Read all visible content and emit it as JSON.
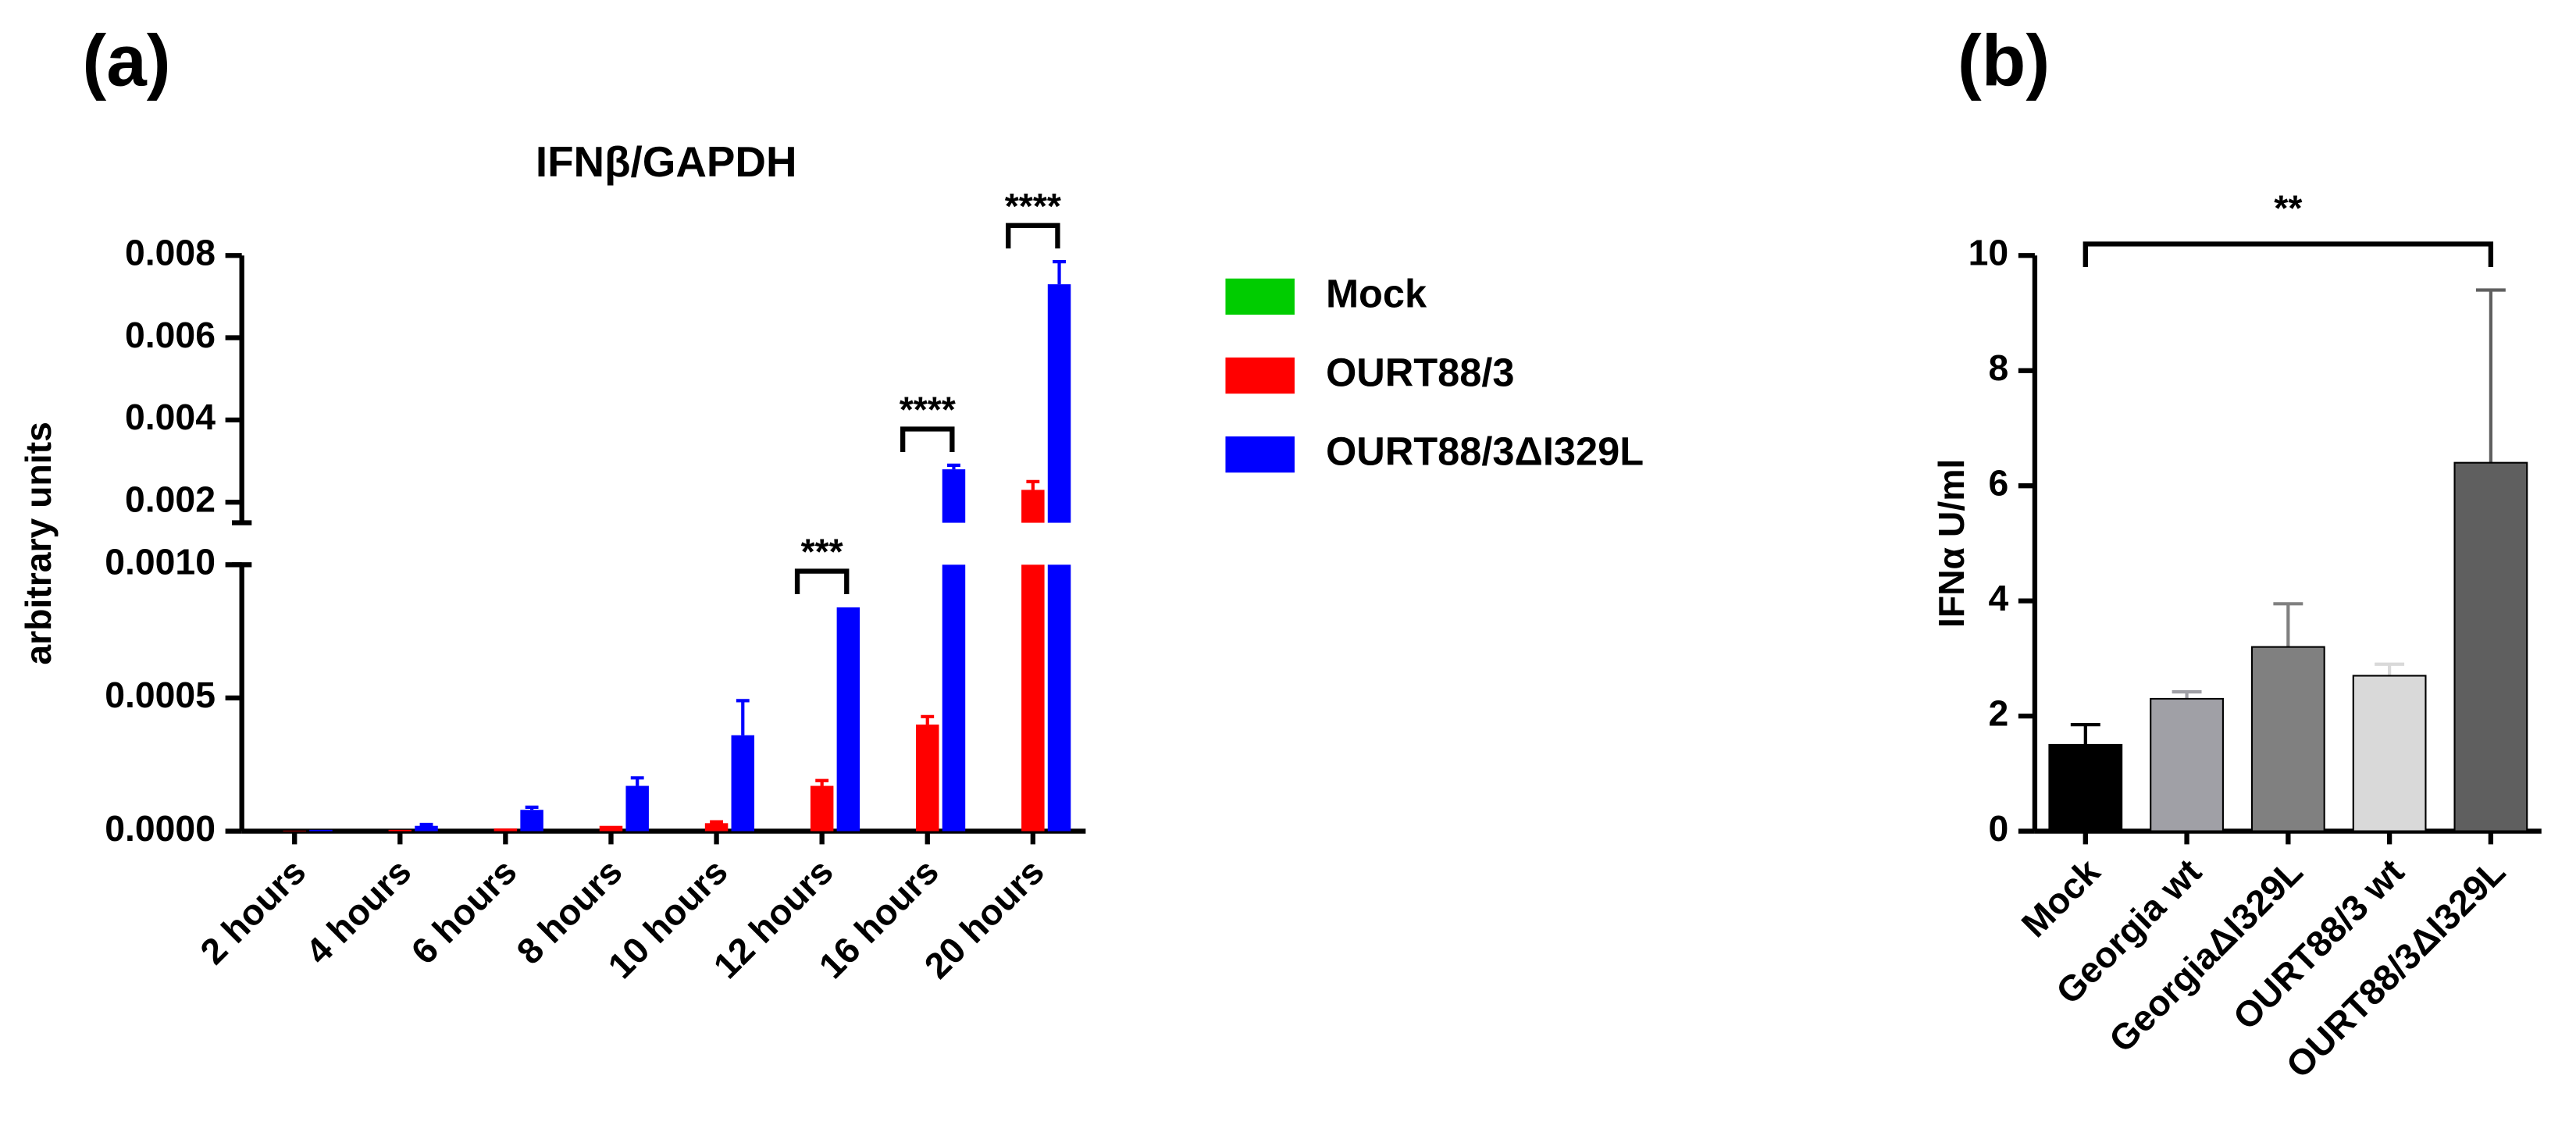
{
  "chart_data": [
    {
      "type": "bar",
      "panel_label": "(a)",
      "title": "IFNβ/GAPDH",
      "y_label": "arbitrary units",
      "categories": [
        "2 hours",
        "4 hours",
        "6 hours",
        "8 hours",
        "10 hours",
        "12 hours",
        "16 hours",
        "20 hours"
      ],
      "series": [
        {
          "name": "Mock",
          "color": "#00cc00",
          "values": [
            0,
            0,
            0,
            0,
            0,
            0,
            0,
            0
          ],
          "errors": [
            0,
            0,
            0,
            0,
            0,
            0,
            0,
            0
          ]
        },
        {
          "name": "OURT88/3",
          "color": "#ff0000",
          "values": [
            2e-06,
            5e-06,
            1e-05,
            2e-05,
            3e-05,
            0.00017,
            0.0004,
            0.0023
          ],
          "errors": [
            0,
            0,
            0,
            0,
            5e-06,
            2e-05,
            3e-05,
            0.0002
          ]
        },
        {
          "name": "OURT88/3ΔI329L",
          "color": "#0000ff",
          "values": [
            5e-06,
            2e-05,
            8e-05,
            0.00017,
            0.00036,
            0.00084,
            0.0028,
            0.0073
          ],
          "errors": [
            0,
            5e-06,
            1e-05,
            3e-05,
            0.00013,
            0,
            0.0001,
            0.00055
          ]
        }
      ],
      "ylim": [
        0,
        0.008
      ],
      "y_break": [
        0.001,
        0.0015
      ],
      "yticks": [
        {
          "value": 0,
          "label": "0.0000"
        },
        0.0005,
        {
          "value": 0.001,
          "label": "0.0010"
        },
        0.002,
        0.004,
        0.006,
        0.008
      ],
      "annotations": [
        {
          "category": 5,
          "label": "***"
        },
        {
          "category": 6,
          "label": "****"
        },
        {
          "category": 7,
          "label": "****"
        }
      ]
    },
    {
      "type": "bar",
      "panel_label": "(b)",
      "y_label": "IFNα U/ml",
      "categories": [
        "Mock",
        "Georgia wt",
        "GeorgiaΔI329L",
        "OURT88/3 wt",
        "OURT88/3ΔI329L"
      ],
      "values": [
        1.5,
        2.3,
        3.2,
        2.7,
        6.4
      ],
      "errors": [
        0.35,
        0.12,
        0.75,
        0.2,
        3.0
      ],
      "colors": [
        "#000000",
        "#a0a0a6",
        "#808080",
        "#d9d9d9",
        "#5f5f5f"
      ],
      "ylim": [
        0,
        10
      ],
      "yticks": [
        0,
        2,
        4,
        6,
        8,
        10
      ],
      "annotations": [
        {
          "from": 0,
          "to": 4,
          "label": "**"
        }
      ]
    }
  ]
}
